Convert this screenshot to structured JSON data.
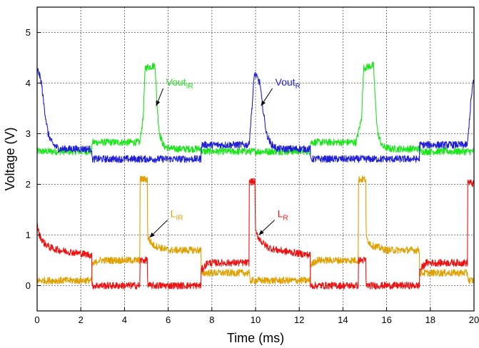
{
  "chart_data": {
    "type": "line",
    "title": "",
    "xlabel": "Time (ms)",
    "ylabel": "Voltage (V)",
    "xlim": [
      0,
      20
    ],
    "ylim": [
      -0.5,
      5.5
    ],
    "xticks": [
      0,
      2,
      4,
      6,
      8,
      10,
      12,
      14,
      16,
      18,
      20
    ],
    "yticks": [
      0,
      1,
      2,
      3,
      4,
      5
    ],
    "grid": true,
    "colors": {
      "vout_ir": "#19e619",
      "vout_r": "#1f1fd6",
      "l_ir": "#dfa000",
      "l_r": "#ee1111"
    },
    "series": [
      {
        "key": "vout_ir",
        "x": [
          0,
          0.01,
          0.2,
          0.5,
          2.5,
          2.51,
          4.7,
          4.85,
          4.95,
          5.4,
          5.5,
          5.6,
          5.8,
          6.2,
          7.5,
          7.51,
          9.7,
          9.75,
          12.5,
          12.51,
          14.6,
          14.85,
          14.95,
          15.4,
          15.5,
          15.6,
          15.8,
          16.2,
          17.5,
          17.51,
          19.7,
          19.75,
          20
        ],
        "y": [
          2.65,
          2.65,
          2.65,
          2.65,
          2.65,
          2.83,
          2.83,
          3.3,
          4.3,
          4.35,
          3.5,
          3.0,
          2.75,
          2.7,
          2.7,
          2.65,
          2.65,
          2.65,
          2.65,
          2.83,
          2.83,
          3.3,
          4.3,
          4.35,
          3.5,
          3.0,
          2.75,
          2.7,
          2.7,
          2.65,
          2.65,
          2.65,
          2.65
        ]
      },
      {
        "key": "vout_r",
        "x": [
          0,
          0.05,
          0.2,
          0.3,
          0.5,
          0.7,
          1.0,
          2.5,
          2.51,
          7.5,
          7.51,
          9.7,
          9.85,
          9.95,
          10.2,
          10.3,
          10.5,
          10.7,
          11.0,
          12.5,
          12.51,
          17.5,
          17.51,
          19.7,
          19.85,
          19.95,
          20
        ],
        "y": [
          4.2,
          4.25,
          4.0,
          3.6,
          3.0,
          2.8,
          2.7,
          2.7,
          2.5,
          2.5,
          2.78,
          2.78,
          3.6,
          4.2,
          4.0,
          3.6,
          3.0,
          2.8,
          2.7,
          2.7,
          2.5,
          2.5,
          2.78,
          2.78,
          3.6,
          4.0,
          4.0
        ]
      },
      {
        "key": "l_ir",
        "x": [
          0,
          2.5,
          2.51,
          2.8,
          4.7,
          4.71,
          5.05,
          5.06,
          5.3,
          6.0,
          7.5,
          7.51,
          9.7,
          9.75,
          12.5,
          12.51,
          12.8,
          14.7,
          14.71,
          15.05,
          15.06,
          15.3,
          16.0,
          17.5,
          17.51,
          19.7,
          19.75,
          20
        ],
        "y": [
          0.1,
          0.1,
          0.4,
          0.5,
          0.5,
          2.1,
          2.1,
          0.95,
          0.8,
          0.7,
          0.7,
          0.25,
          0.25,
          0.1,
          0.1,
          0.4,
          0.5,
          0.5,
          2.1,
          2.1,
          0.95,
          0.8,
          0.7,
          0.7,
          0.25,
          0.25,
          0.1,
          0.1
        ]
      },
      {
        "key": "l_r",
        "x": [
          0,
          0.1,
          0.3,
          0.6,
          1.0,
          2.5,
          2.51,
          4.7,
          4.71,
          5.05,
          5.06,
          7.5,
          7.51,
          7.8,
          9.7,
          9.71,
          9.98,
          9.99,
          10.3,
          10.6,
          11.0,
          12.5,
          12.51,
          14.7,
          14.71,
          15.05,
          15.06,
          17.5,
          17.51,
          17.8,
          19.7,
          19.71,
          20
        ],
        "y": [
          1.2,
          1.0,
          0.85,
          0.75,
          0.7,
          0.6,
          0.0,
          0.0,
          0.5,
          0.5,
          0.0,
          0.0,
          0.3,
          0.45,
          0.45,
          2.05,
          2.05,
          1.05,
          0.85,
          0.75,
          0.7,
          0.6,
          0.0,
          0.0,
          0.5,
          0.5,
          0.0,
          0.0,
          0.3,
          0.45,
          0.45,
          2.05,
          2.0
        ]
      }
    ],
    "annotations": [
      {
        "main": "Vout",
        "sub": "IR",
        "color": "#19e619",
        "x": 5.9,
        "y": 3.95,
        "arrow_to": [
          5.45,
          3.55
        ]
      },
      {
        "main": "Vout",
        "sub": "R",
        "color": "#1f1fd6",
        "x": 10.9,
        "y": 3.95,
        "arrow_to": [
          10.25,
          3.55
        ]
      },
      {
        "main": "L",
        "sub": "IR",
        "color": "#dfa000",
        "x": 6.1,
        "y": 1.35,
        "arrow_to": [
          5.15,
          0.95
        ]
      },
      {
        "main": "L",
        "sub": "R",
        "color": "#ee1111",
        "x": 11.0,
        "y": 1.35,
        "arrow_to": [
          10.15,
          1.0
        ]
      }
    ]
  }
}
